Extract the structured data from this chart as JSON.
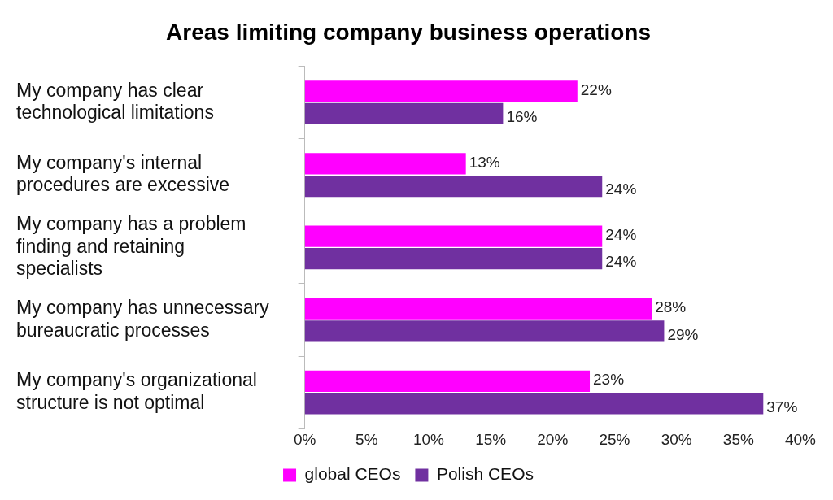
{
  "chart_data": {
    "type": "bar",
    "orientation": "horizontal",
    "title": "Areas limiting company business operations",
    "categories": [
      "My company has clear technological limitations",
      "My company's internal procedures are excessive",
      "My company has a problem finding and retaining specialists",
      "My company has unnecessary bureaucratic processes",
      "My company's organizational structure is not optimal"
    ],
    "series": [
      {
        "name": "global CEOs",
        "color": "#ff00ff",
        "values": [
          22,
          13,
          24,
          28,
          23
        ],
        "value_labels": [
          "22%",
          "13%",
          "24%",
          "28%",
          "23%"
        ]
      },
      {
        "name": "Polish CEOs",
        "color": "#7030a0",
        "values": [
          16,
          24,
          24,
          29,
          37
        ],
        "value_labels": [
          "16%",
          "24%",
          "24%",
          "29%",
          "37%"
        ]
      }
    ],
    "xlim": [
      0,
      40
    ],
    "xticks": [
      {
        "value": 0,
        "label": "0%"
      },
      {
        "value": 5,
        "label": "5%"
      },
      {
        "value": 10,
        "label": "10%"
      },
      {
        "value": 15,
        "label": "15%"
      },
      {
        "value": 20,
        "label": "20%"
      },
      {
        "value": 25,
        "label": "25%"
      },
      {
        "value": 30,
        "label": "30%"
      },
      {
        "value": 35,
        "label": "35%"
      },
      {
        "value": 40,
        "label": "40%"
      }
    ],
    "grid": false,
    "legend": "bottom"
  }
}
